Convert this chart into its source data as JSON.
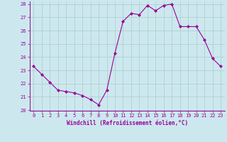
{
  "x": [
    0,
    1,
    2,
    3,
    4,
    5,
    6,
    7,
    8,
    9,
    10,
    11,
    12,
    13,
    14,
    15,
    16,
    17,
    18,
    19,
    20,
    21,
    22,
    23
  ],
  "y": [
    23.3,
    22.7,
    22.1,
    21.5,
    21.4,
    21.3,
    21.1,
    20.8,
    20.4,
    21.5,
    24.3,
    26.7,
    27.3,
    27.2,
    27.9,
    27.5,
    27.9,
    28.0,
    26.3,
    26.3,
    26.3,
    25.3,
    23.9,
    23.3
  ],
  "line_color": "#990099",
  "marker": "D",
  "markersize": 2.0,
  "linewidth": 0.8,
  "bg_color": "#cce8ee",
  "grid_color": "#aacccc",
  "xlabel": "Windchill (Refroidissement éolien,°C)",
  "xlabel_color": "#990099",
  "tick_color": "#990099",
  "ylim": [
    20,
    28
  ],
  "xlim": [
    -0.5,
    23.5
  ],
  "yticks": [
    20,
    21,
    22,
    23,
    24,
    25,
    26,
    27,
    28
  ],
  "xticks": [
    0,
    1,
    2,
    3,
    4,
    5,
    6,
    7,
    8,
    9,
    10,
    11,
    12,
    13,
    14,
    15,
    16,
    17,
    18,
    19,
    20,
    21,
    22,
    23
  ],
  "tick_fontsize": 5.0,
  "xlabel_fontsize": 5.5
}
